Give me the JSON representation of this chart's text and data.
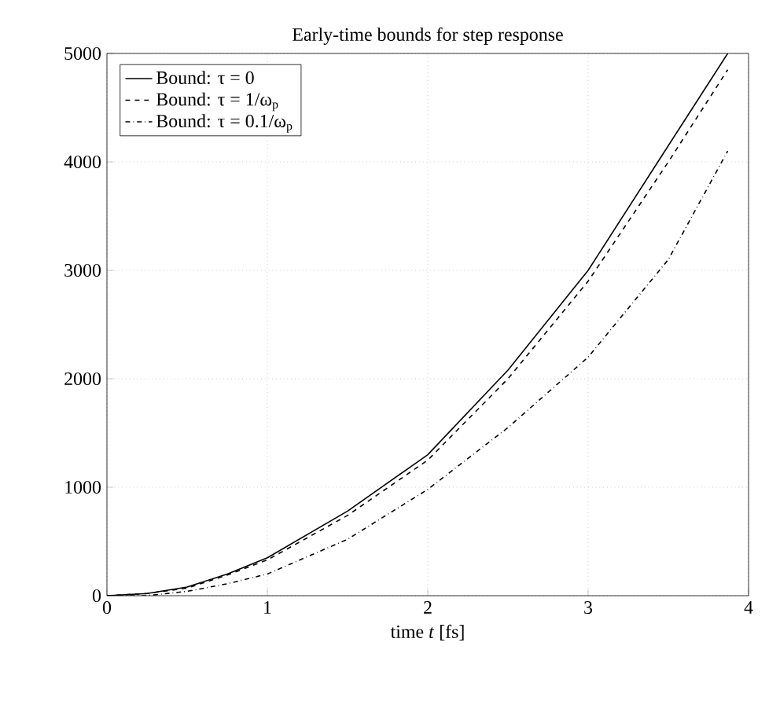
{
  "chart_data": {
    "type": "line",
    "title": "Early-time bounds for step response",
    "xlabel": "time *t* [fs]",
    "x": [
      0,
      0.25,
      0.5,
      0.75,
      1,
      1.5,
      2,
      2.5,
      3,
      3.5,
      3.87
    ],
    "series": [
      {
        "name": "Bound: τ = 0",
        "color": "#000000",
        "line_style": "solid",
        "values": [
          0,
          20,
          80,
          200,
          350,
          780,
          1300,
          2080,
          3000,
          4150,
          5000
        ]
      },
      {
        "name": "Bound: τ = 1/ω$_{p}$",
        "color": "#000000",
        "line_style": "dashed",
        "values": [
          0,
          20,
          70,
          190,
          330,
          740,
          1250,
          2000,
          2900,
          4000,
          4850
        ]
      },
      {
        "name": "Bound: τ = 0.1/ω$_{p}$",
        "color": "#000000",
        "line_style": "dashdot",
        "values": [
          0,
          0,
          40,
          110,
          200,
          520,
          980,
          1550,
          2200,
          3100,
          4100
        ]
      }
    ],
    "xlim": [
      0,
      4
    ],
    "ylim": [
      0,
      5000
    ],
    "xticks": [
      0,
      1,
      2,
      3,
      4
    ],
    "yticks": [
      0,
      1000,
      2000,
      3000,
      4000,
      5000
    ],
    "grid": true,
    "legend": "top left",
    "marker": "none"
  }
}
